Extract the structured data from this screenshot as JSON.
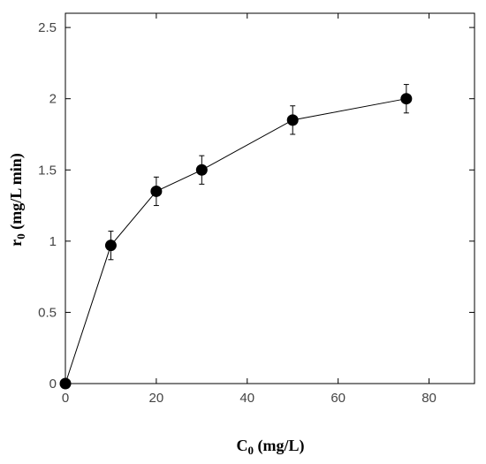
{
  "chart_data": {
    "type": "line",
    "xlabel": {
      "main": "C",
      "subscript": "0",
      "rest": " (mg/L)"
    },
    "ylabel": {
      "main": "r",
      "subscript": "0",
      "rest": " (mg/L min)"
    },
    "xlim": [
      0,
      90
    ],
    "ylim": [
      0,
      2.6
    ],
    "xticks": [
      0,
      20,
      40,
      60,
      80
    ],
    "yticks": [
      0,
      0.5,
      1,
      1.5,
      2,
      2.5
    ],
    "xtick_labels": [
      "0",
      "20",
      "40",
      "60",
      "80"
    ],
    "ytick_labels": [
      "0",
      "0.5",
      "1",
      "1.5",
      "2",
      "2.5"
    ],
    "grid": false,
    "series": [
      {
        "x": [
          0,
          10,
          20,
          30,
          50,
          75
        ],
        "y": [
          0,
          0.97,
          1.35,
          1.5,
          1.85,
          2.0
        ],
        "error": [
          0,
          0.1,
          0.1,
          0.1,
          0.1,
          0.1
        ],
        "color": "#000000",
        "marker": "filled-circle"
      }
    ]
  }
}
